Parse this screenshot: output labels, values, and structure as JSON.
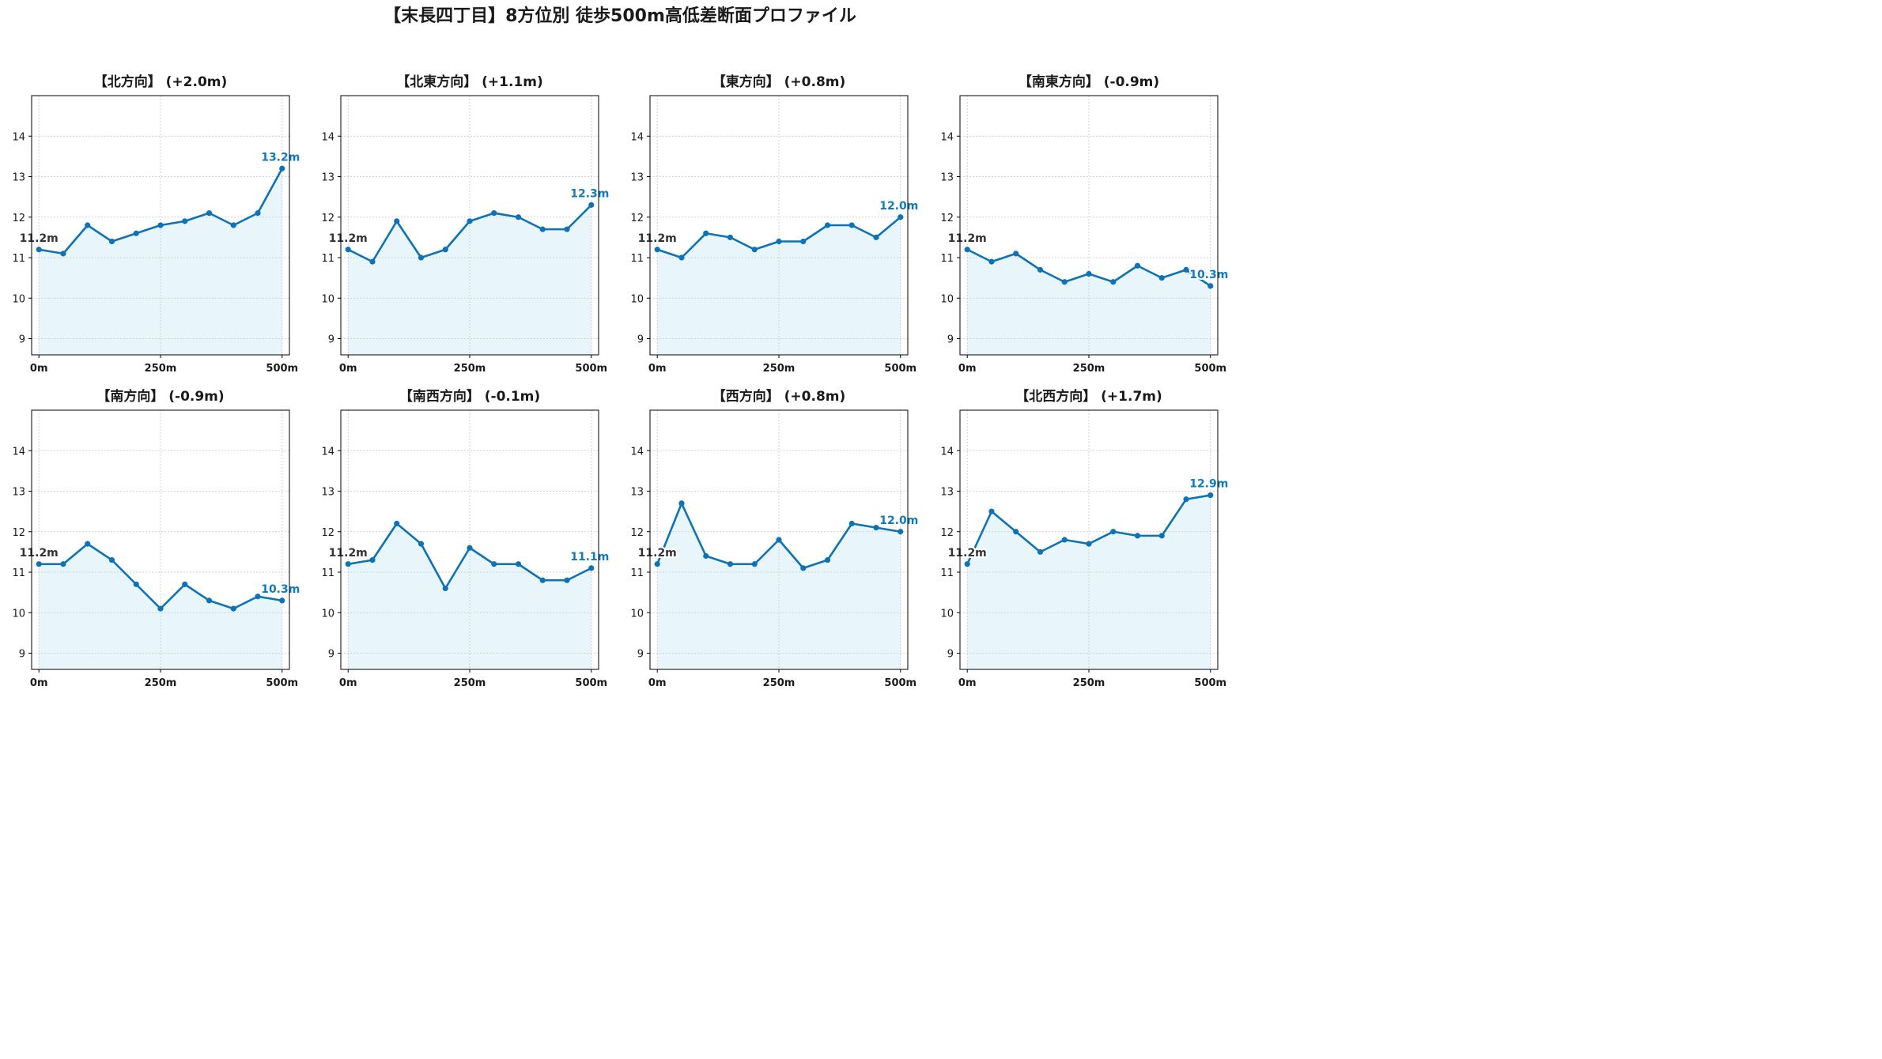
{
  "title": "【末長四丁目】8方位別 徒歩500m高低差断面プロファイル",
  "colors": {
    "line": "#0e72b5",
    "fill": "#e8f6fc",
    "end_label": "#0e7bbd",
    "start_label": "#333333",
    "grid": "#c8c8c8"
  },
  "chart_data": [
    {
      "type": "line",
      "title": "【北方向】 (+2.0m)",
      "x": [
        0,
        50,
        100,
        150,
        200,
        250,
        300,
        350,
        400,
        450,
        500
      ],
      "y": [
        11.2,
        11.1,
        11.8,
        11.4,
        11.6,
        11.8,
        11.9,
        12.1,
        11.8,
        12.1,
        13.2
      ],
      "xticks": [
        "0m",
        "250m",
        "500m"
      ],
      "yticks": [
        9,
        10,
        11,
        12,
        13,
        14
      ],
      "ylim": [
        8.6,
        15.0
      ],
      "xlim": [
        -15,
        515
      ],
      "start_label": "11.2m",
      "end_label": "13.2m",
      "grid": true
    },
    {
      "type": "line",
      "title": "【北東方向】 (+1.1m)",
      "x": [
        0,
        50,
        100,
        150,
        200,
        250,
        300,
        350,
        400,
        450,
        500
      ],
      "y": [
        11.2,
        10.9,
        11.9,
        11.0,
        11.2,
        11.9,
        12.1,
        12.0,
        11.7,
        11.7,
        12.3
      ],
      "xticks": [
        "0m",
        "250m",
        "500m"
      ],
      "yticks": [
        9,
        10,
        11,
        12,
        13,
        14
      ],
      "ylim": [
        8.6,
        15.0
      ],
      "xlim": [
        -15,
        515
      ],
      "start_label": "11.2m",
      "end_label": "12.3m",
      "grid": true
    },
    {
      "type": "line",
      "title": "【東方向】 (+0.8m)",
      "x": [
        0,
        50,
        100,
        150,
        200,
        250,
        300,
        350,
        400,
        450,
        500
      ],
      "y": [
        11.2,
        11.0,
        11.6,
        11.5,
        11.2,
        11.4,
        11.4,
        11.8,
        11.8,
        11.5,
        12.0
      ],
      "xticks": [
        "0m",
        "250m",
        "500m"
      ],
      "yticks": [
        9,
        10,
        11,
        12,
        13,
        14
      ],
      "ylim": [
        8.6,
        15.0
      ],
      "xlim": [
        -15,
        515
      ],
      "start_label": "11.2m",
      "end_label": "12.0m",
      "grid": true
    },
    {
      "type": "line",
      "title": "【南東方向】 (-0.9m)",
      "x": [
        0,
        50,
        100,
        150,
        200,
        250,
        300,
        350,
        400,
        450,
        500
      ],
      "y": [
        11.2,
        10.9,
        11.1,
        10.7,
        10.4,
        10.6,
        10.4,
        10.8,
        10.5,
        10.7,
        10.3
      ],
      "xticks": [
        "0m",
        "250m",
        "500m"
      ],
      "yticks": [
        9,
        10,
        11,
        12,
        13,
        14
      ],
      "ylim": [
        8.6,
        15.0
      ],
      "xlim": [
        -15,
        515
      ],
      "start_label": "11.2m",
      "end_label": "10.3m",
      "grid": true
    },
    {
      "type": "line",
      "title": "【南方向】 (-0.9m)",
      "x": [
        0,
        50,
        100,
        150,
        200,
        250,
        300,
        350,
        400,
        450,
        500
      ],
      "y": [
        11.2,
        11.2,
        11.7,
        11.3,
        10.7,
        10.1,
        10.7,
        10.3,
        10.1,
        10.4,
        10.3
      ],
      "xticks": [
        "0m",
        "250m",
        "500m"
      ],
      "yticks": [
        9,
        10,
        11,
        12,
        13,
        14
      ],
      "ylim": [
        8.6,
        15.0
      ],
      "xlim": [
        -15,
        515
      ],
      "start_label": "11.2m",
      "end_label": "10.3m",
      "grid": true
    },
    {
      "type": "line",
      "title": "【南西方向】 (-0.1m)",
      "x": [
        0,
        50,
        100,
        150,
        200,
        250,
        300,
        350,
        400,
        450,
        500
      ],
      "y": [
        11.2,
        11.3,
        12.2,
        11.7,
        10.6,
        11.6,
        11.2,
        11.2,
        10.8,
        10.8,
        11.1
      ],
      "xticks": [
        "0m",
        "250m",
        "500m"
      ],
      "yticks": [
        9,
        10,
        11,
        12,
        13,
        14
      ],
      "ylim": [
        8.6,
        15.0
      ],
      "xlim": [
        -15,
        515
      ],
      "start_label": "11.2m",
      "end_label": "11.1m",
      "grid": true
    },
    {
      "type": "line",
      "title": "【西方向】 (+0.8m)",
      "x": [
        0,
        50,
        100,
        150,
        200,
        250,
        300,
        350,
        400,
        450,
        500
      ],
      "y": [
        11.2,
        12.7,
        11.4,
        11.2,
        11.2,
        11.8,
        11.1,
        11.3,
        12.2,
        12.1,
        12.0
      ],
      "xticks": [
        "0m",
        "250m",
        "500m"
      ],
      "yticks": [
        9,
        10,
        11,
        12,
        13,
        14
      ],
      "ylim": [
        8.6,
        15.0
      ],
      "xlim": [
        -15,
        515
      ],
      "start_label": "11.2m",
      "end_label": "12.0m",
      "grid": true
    },
    {
      "type": "line",
      "title": "【北西方向】 (+1.7m)",
      "x": [
        0,
        50,
        100,
        150,
        200,
        250,
        300,
        350,
        400,
        450,
        500
      ],
      "y": [
        11.2,
        12.5,
        12.0,
        11.5,
        11.8,
        11.7,
        12.0,
        11.9,
        11.9,
        12.8,
        12.9
      ],
      "xticks": [
        "0m",
        "250m",
        "500m"
      ],
      "yticks": [
        9,
        10,
        11,
        12,
        13,
        14
      ],
      "ylim": [
        8.6,
        15.0
      ],
      "xlim": [
        -15,
        515
      ],
      "start_label": "11.2m",
      "end_label": "12.9m",
      "grid": true
    }
  ]
}
